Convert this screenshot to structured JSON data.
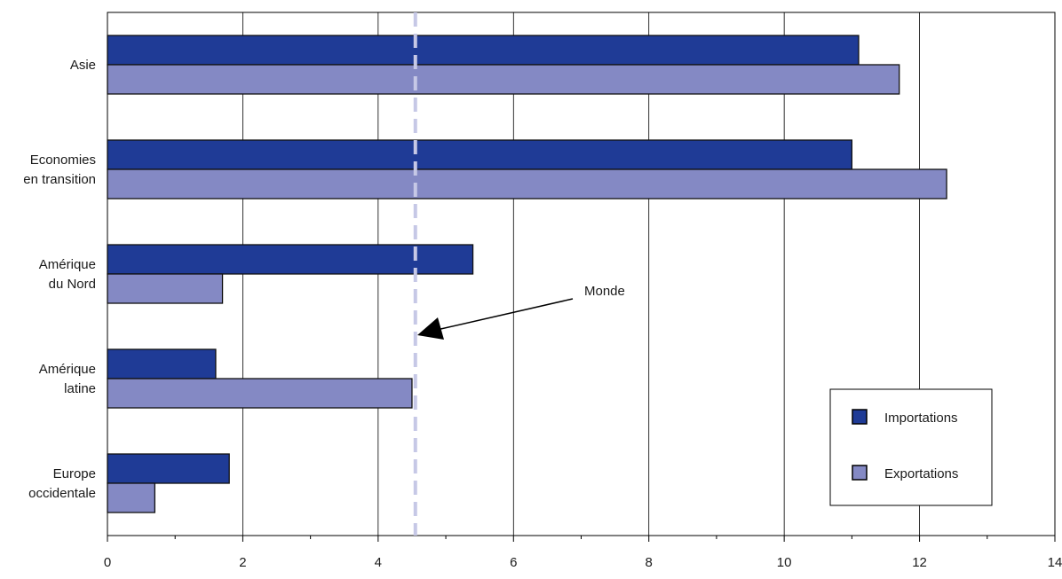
{
  "chart_data": {
    "type": "bar",
    "orientation": "horizontal",
    "categories": [
      [
        "Asie"
      ],
      [
        "Economies",
        "en transition"
      ],
      [
        "Amérique",
        "du Nord"
      ],
      [
        "Amérique",
        "latine"
      ],
      [
        "Europe",
        "occidentale"
      ]
    ],
    "series": [
      {
        "name": "Importations",
        "color": "#1f3b96",
        "values": [
          11.1,
          11.0,
          5.4,
          1.6,
          1.8
        ]
      },
      {
        "name": "Exportations",
        "color": "#8489c4",
        "values": [
          11.7,
          12.4,
          1.7,
          4.5,
          0.7
        ]
      }
    ],
    "xlim": [
      0,
      14
    ],
    "x_ticks": [
      0,
      2,
      4,
      6,
      8,
      10,
      12,
      14
    ],
    "x_minor_step": 1,
    "grid": "vertical",
    "reference_line": {
      "value": 4.55,
      "color": "#c6c8e6",
      "style": "dashed"
    },
    "annotation": {
      "text": "Monde"
    },
    "legend_placement": "bottom-right"
  }
}
